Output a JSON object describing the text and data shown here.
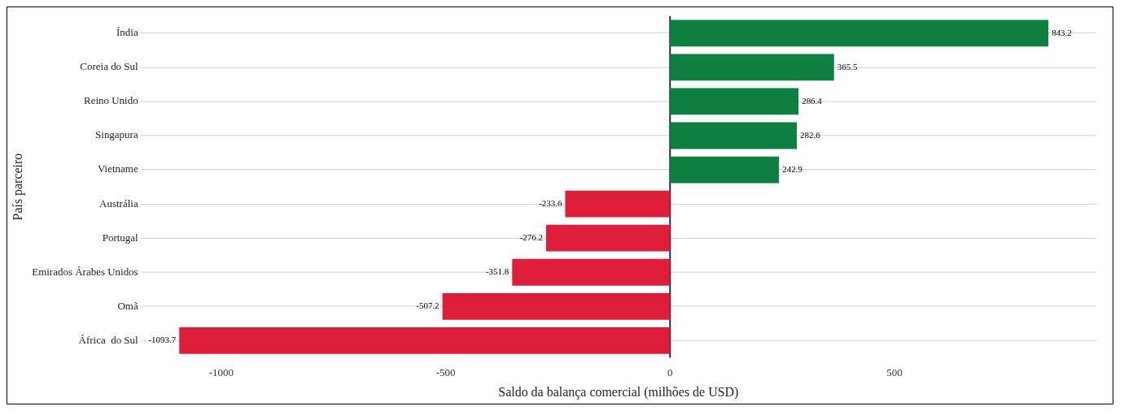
{
  "chart_data": {
    "type": "bar",
    "orientation": "horizontal",
    "xlabel": "Saldo da balança comercial (milhões de USD)",
    "ylabel": "País parceiro",
    "categories": [
      "Índia",
      "Coreia do Sul",
      "Reino Unido",
      "Singapura",
      "Vietname",
      "Austrália",
      "Portugal",
      "Emirados Árabes Unidos",
      "Omã",
      "África  do Sul"
    ],
    "values": [
      843.2,
      365.5,
      286.4,
      282.6,
      242.9,
      -233.6,
      -276.2,
      -351.8,
      -507.2,
      -1093.7
    ],
    "colors": [
      "#0e7f3e",
      "#0e7f3e",
      "#0e7f3e",
      "#0e7f3e",
      "#0e7f3e",
      "#dc1e3a",
      "#dc1e3a",
      "#dc1e3a",
      "#dc1e3a",
      "#dc1e3a"
    ],
    "xlim": [
      -1180,
      950
    ],
    "xticks": [
      -1000,
      -500,
      0,
      500
    ],
    "ref_lines": [
      {
        "axis": "x",
        "value": 0,
        "color": "#1f2d4d"
      }
    ],
    "grid": "y",
    "legend": false,
    "data_labels": true
  }
}
